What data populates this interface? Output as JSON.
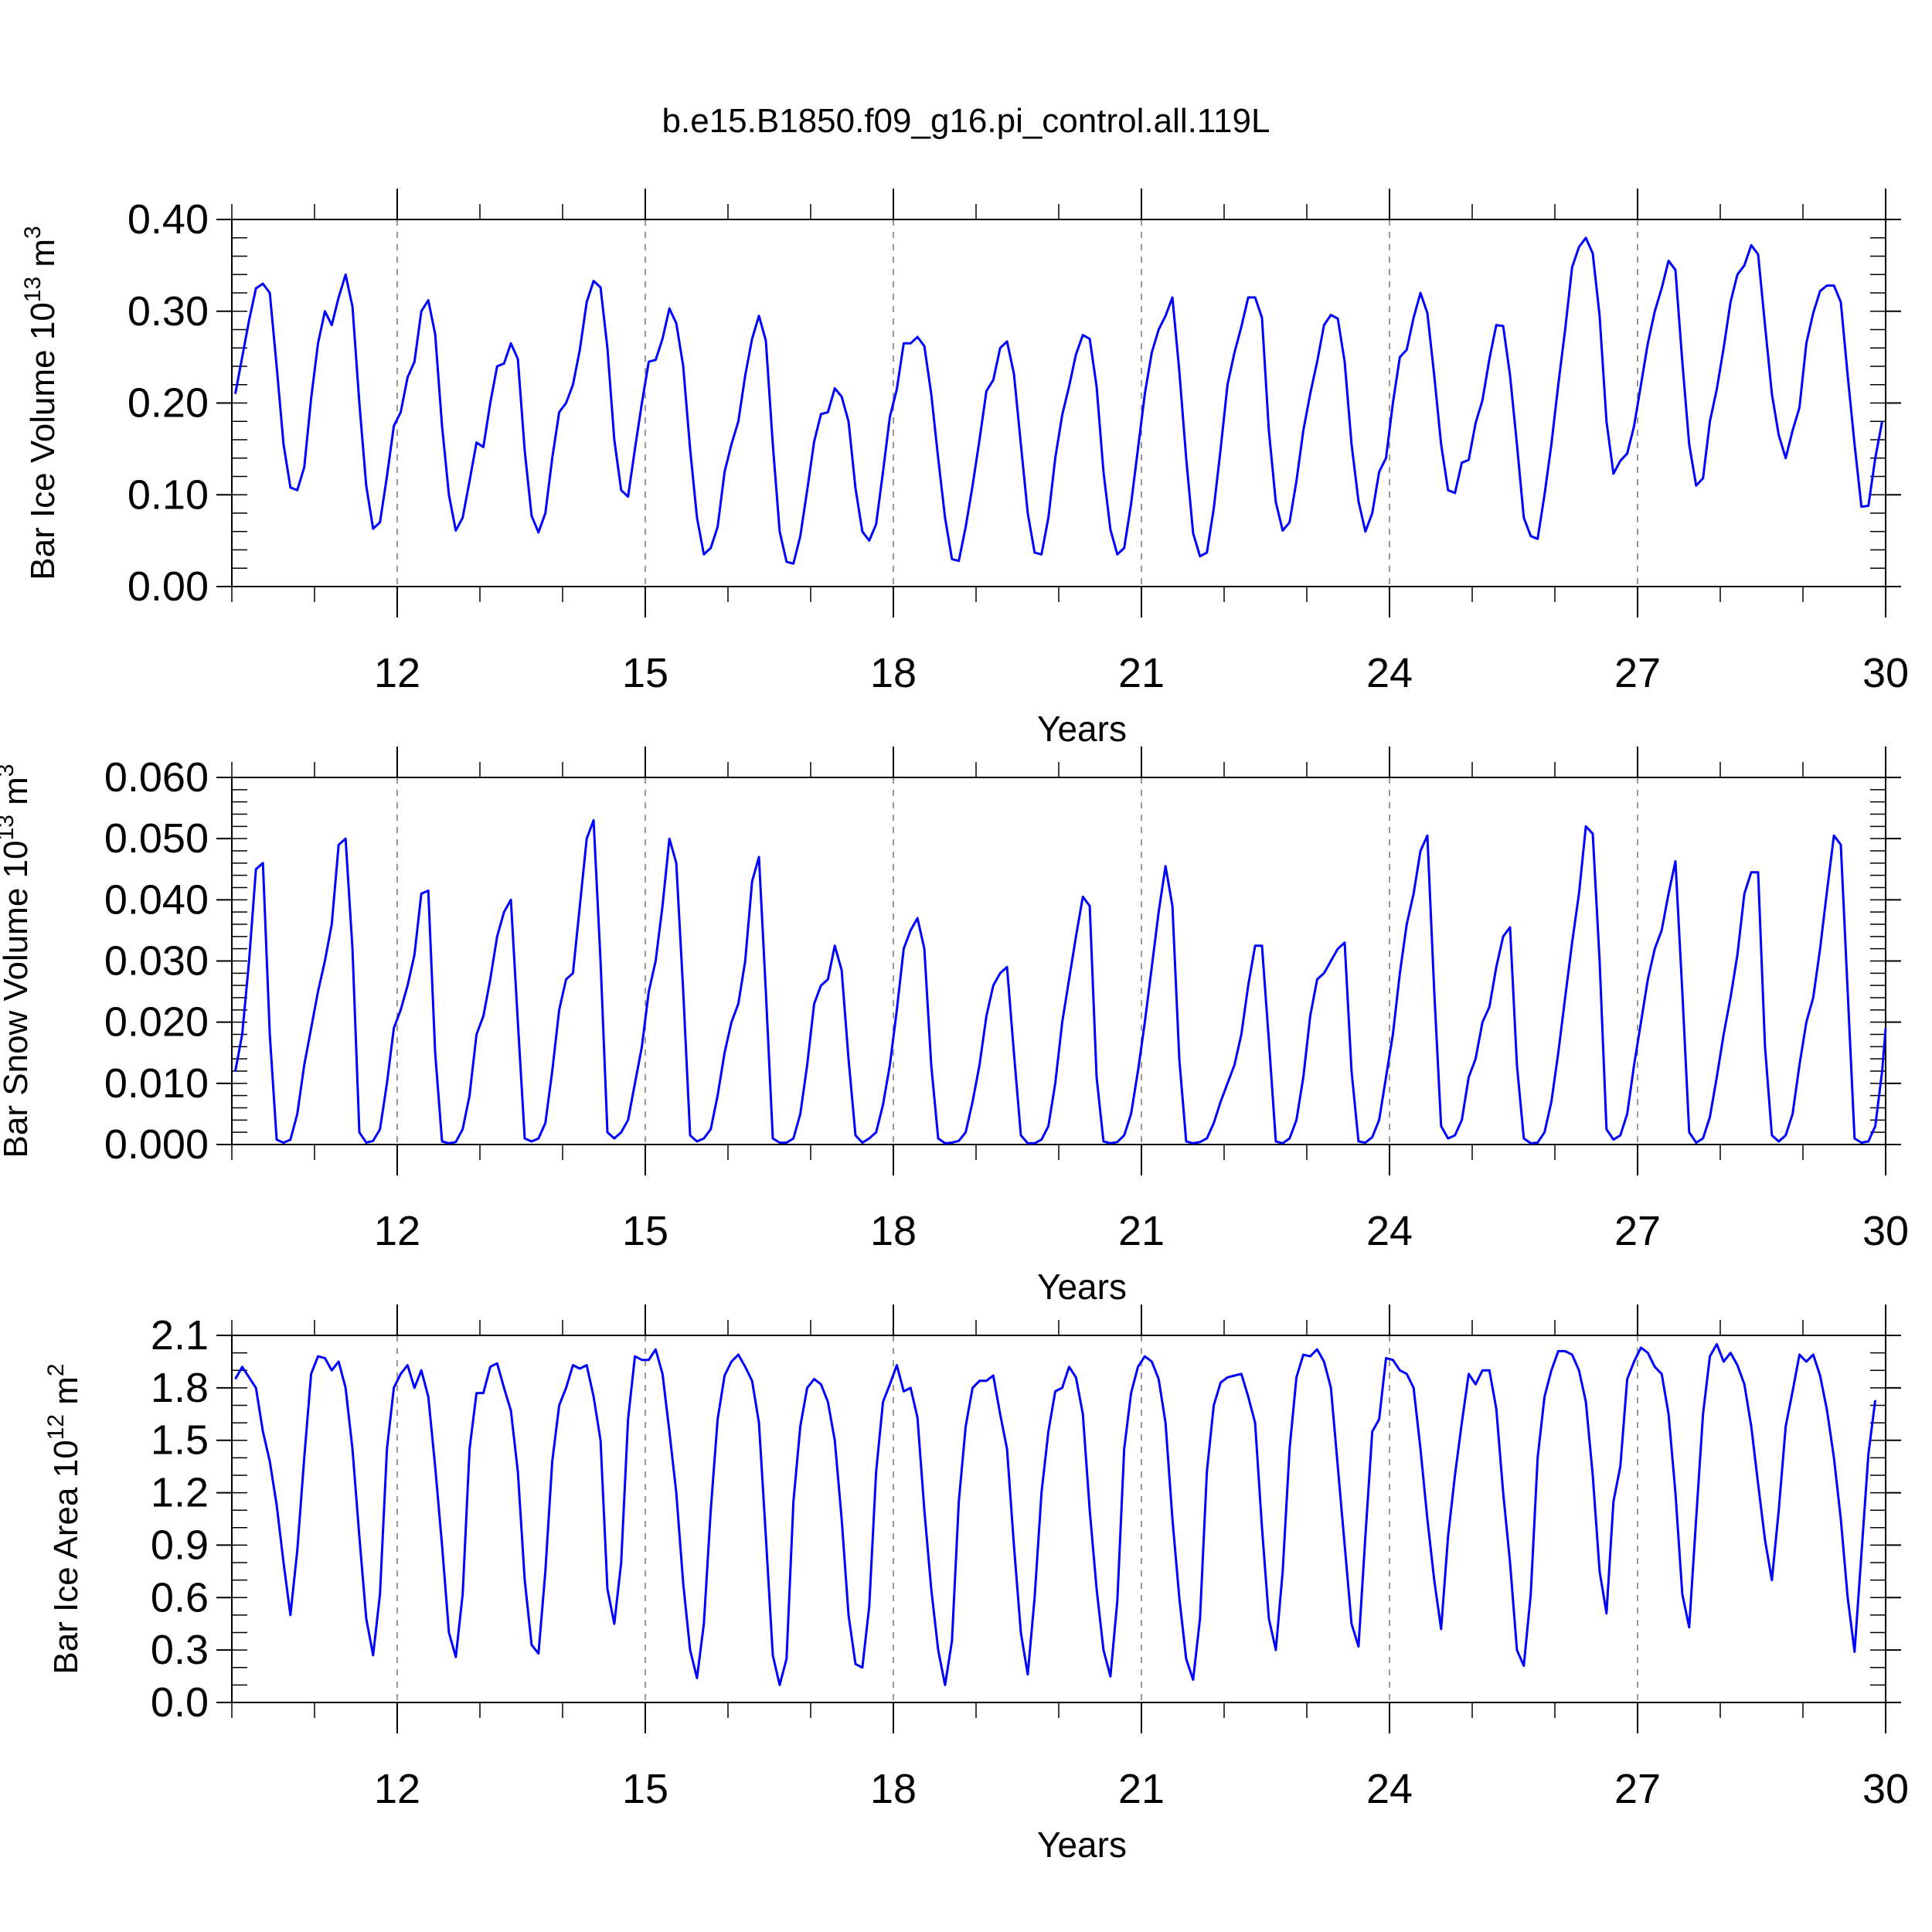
{
  "figure_title": "b.e15.B1850.f09_g16.pi_control.all.119L",
  "line_color": "#0000ff",
  "chart_data": [
    {
      "type": "line",
      "xlabel": "Years",
      "ylabel_main": "Bar Ice Volume 10",
      "ylabel_exp": "13",
      "ylabel_unit": " m",
      "ylabel_unit_exp": "3",
      "xlim": [
        10,
        30
      ],
      "ylim": [
        0,
        0.4
      ],
      "xticks": [
        12,
        15,
        18,
        21,
        24,
        27,
        30
      ],
      "xtick_labels": [
        "12",
        "15",
        "18",
        "21",
        "24",
        "27",
        "30"
      ],
      "yticks": [
        0,
        0.1,
        0.2,
        0.3,
        0.4
      ],
      "ytick_labels": [
        "0.00",
        "0.10",
        "0.20",
        "0.30",
        "0.40"
      ],
      "yminor_step": 0.02,
      "vertical_grid": "dashed",
      "series": [
        {
          "x_start": 10.042,
          "x_step": 0.08333,
          "values": [
            0.21,
            0.25,
            0.29,
            0.325,
            0.33,
            0.32,
            0.24,
            0.155,
            0.108,
            0.105,
            0.13,
            0.205,
            0.265,
            0.3,
            0.285,
            0.315,
            0.34,
            0.305,
            0.2,
            0.11,
            0.063,
            0.07,
            0.12,
            0.175,
            0.19,
            0.228,
            0.245,
            0.3,
            0.312,
            0.275,
            0.175,
            0.1,
            0.061,
            0.075,
            0.115,
            0.157,
            0.152,
            0.2,
            0.24,
            0.243,
            0.265,
            0.248,
            0.148,
            0.077,
            0.059,
            0.08,
            0.14,
            0.19,
            0.2,
            0.22,
            0.258,
            0.31,
            0.333,
            0.326,
            0.26,
            0.16,
            0.105,
            0.098,
            0.15,
            0.2,
            0.245,
            0.247,
            0.27,
            0.303,
            0.287,
            0.24,
            0.15,
            0.075,
            0.035,
            0.042,
            0.065,
            0.125,
            0.155,
            0.18,
            0.23,
            0.27,
            0.295,
            0.268,
            0.155,
            0.06,
            0.027,
            0.025,
            0.055,
            0.105,
            0.158,
            0.188,
            0.19,
            0.216,
            0.207,
            0.18,
            0.107,
            0.06,
            0.05,
            0.068,
            0.125,
            0.185,
            0.215,
            0.265,
            0.265,
            0.272,
            0.262,
            0.21,
            0.14,
            0.075,
            0.03,
            0.028,
            0.065,
            0.11,
            0.16,
            0.213,
            0.225,
            0.26,
            0.267,
            0.232,
            0.155,
            0.08,
            0.037,
            0.035,
            0.075,
            0.14,
            0.187,
            0.218,
            0.253,
            0.274,
            0.27,
            0.218,
            0.125,
            0.062,
            0.035,
            0.042,
            0.09,
            0.15,
            0.21,
            0.255,
            0.28,
            0.295,
            0.315,
            0.235,
            0.14,
            0.058,
            0.033,
            0.037,
            0.085,
            0.15,
            0.22,
            0.255,
            0.283,
            0.315,
            0.315,
            0.293,
            0.17,
            0.092,
            0.061,
            0.07,
            0.115,
            0.17,
            0.21,
            0.245,
            0.285,
            0.296,
            0.292,
            0.245,
            0.155,
            0.093,
            0.06,
            0.08,
            0.125,
            0.14,
            0.2,
            0.25,
            0.258,
            0.293,
            0.32,
            0.298,
            0.23,
            0.155,
            0.105,
            0.102,
            0.135,
            0.138,
            0.178,
            0.203,
            0.248,
            0.285,
            0.284,
            0.23,
            0.155,
            0.075,
            0.055,
            0.052,
            0.1,
            0.155,
            0.22,
            0.28,
            0.348,
            0.37,
            0.38,
            0.363,
            0.295,
            0.18,
            0.123,
            0.137,
            0.145,
            0.175,
            0.22,
            0.265,
            0.3,
            0.325,
            0.355,
            0.345,
            0.245,
            0.155,
            0.11,
            0.118,
            0.18,
            0.215,
            0.26,
            0.31,
            0.34,
            0.35,
            0.372,
            0.362,
            0.285,
            0.21,
            0.165,
            0.14,
            0.17,
            0.195,
            0.265,
            0.298,
            0.322,
            0.328,
            0.328,
            0.31,
            0.23,
            0.155,
            0.087,
            0.088,
            0.14,
            0.18
          ]
        }
      ]
    },
    {
      "type": "line",
      "xlabel": "Years",
      "ylabel_main": "Bar Snow Volume 10",
      "ylabel_exp": "13",
      "ylabel_unit": " m",
      "ylabel_unit_exp": "3",
      "xlim": [
        10,
        30
      ],
      "ylim": [
        0,
        0.06
      ],
      "xticks": [
        12,
        15,
        18,
        21,
        24,
        27,
        30
      ],
      "xtick_labels": [
        "12",
        "15",
        "18",
        "21",
        "24",
        "27",
        "30"
      ],
      "yticks": [
        0,
        0.01,
        0.02,
        0.03,
        0.04,
        0.05,
        0.06
      ],
      "ytick_labels": [
        "0.000",
        "0.010",
        "0.020",
        "0.030",
        "0.040",
        "0.050",
        "0.060"
      ],
      "yminor_step": 0.002,
      "vertical_grid": "dashed",
      "series": [
        {
          "x_start": 10.042,
          "x_step": 0.08333,
          "values": [
            0.012,
            0.018,
            0.03,
            0.045,
            0.046,
            0.018,
            0.0008,
            0.0003,
            0.0008,
            0.005,
            0.013,
            0.019,
            0.025,
            0.03,
            0.036,
            0.049,
            0.05,
            0.032,
            0.002,
            0.0003,
            0.0006,
            0.0025,
            0.01,
            0.019,
            0.022,
            0.026,
            0.031,
            0.041,
            0.0415,
            0.015,
            0.0005,
            0.0002,
            0.0004,
            0.0025,
            0.008,
            0.018,
            0.021,
            0.027,
            0.034,
            0.038,
            0.04,
            0.02,
            0.001,
            0.0005,
            0.001,
            0.0035,
            0.012,
            0.022,
            0.027,
            0.028,
            0.039,
            0.05,
            0.053,
            0.03,
            0.002,
            0.001,
            0.002,
            0.004,
            0.01,
            0.016,
            0.025,
            0.03,
            0.039,
            0.05,
            0.046,
            0.025,
            0.0015,
            0.0005,
            0.001,
            0.0025,
            0.008,
            0.015,
            0.02,
            0.023,
            0.03,
            0.043,
            0.047,
            0.025,
            0.001,
            0.0003,
            0.0003,
            0.001,
            0.005,
            0.013,
            0.023,
            0.026,
            0.027,
            0.0325,
            0.0285,
            0.014,
            0.0015,
            0.0003,
            0.001,
            0.002,
            0.0065,
            0.013,
            0.022,
            0.032,
            0.035,
            0.037,
            0.032,
            0.013,
            0.001,
            0.0002,
            0.0003,
            0.0006,
            0.002,
            0.007,
            0.013,
            0.021,
            0.026,
            0.028,
            0.029,
            0.015,
            0.0015,
            0.0002,
            0.0002,
            0.0008,
            0.003,
            0.01,
            0.02,
            0.027,
            0.034,
            0.0405,
            0.039,
            0.011,
            0.0005,
            0.0002,
            0.0004,
            0.0015,
            0.005,
            0.012,
            0.02,
            0.029,
            0.038,
            0.0455,
            0.039,
            0.014,
            0.0005,
            0.0002,
            0.0004,
            0.001,
            0.0035,
            0.007,
            0.01,
            0.013,
            0.018,
            0.026,
            0.0325,
            0.0325,
            0.017,
            0.0005,
            0.0002,
            0.001,
            0.004,
            0.011,
            0.021,
            0.027,
            0.028,
            0.03,
            0.032,
            0.033,
            0.012,
            0.0005,
            0.0003,
            0.0012,
            0.004,
            0.011,
            0.018,
            0.028,
            0.036,
            0.041,
            0.048,
            0.0505,
            0.025,
            0.003,
            0.001,
            0.0015,
            0.004,
            0.011,
            0.014,
            0.02,
            0.0225,
            0.029,
            0.034,
            0.0355,
            0.013,
            0.001,
            0.0002,
            0.0003,
            0.002,
            0.007,
            0.015,
            0.024,
            0.033,
            0.041,
            0.052,
            0.0508,
            0.03,
            0.0025,
            0.0008,
            0.0015,
            0.005,
            0.013,
            0.02,
            0.027,
            0.032,
            0.035,
            0.041,
            0.0463,
            0.025,
            0.002,
            0.0003,
            0.001,
            0.0045,
            0.011,
            0.018,
            0.024,
            0.031,
            0.041,
            0.0445,
            0.0445,
            0.016,
            0.0015,
            0.0005,
            0.0015,
            0.005,
            0.013,
            0.02,
            0.024,
            0.032,
            0.0415,
            0.0505,
            0.049,
            0.025,
            0.001,
            0.0003,
            0.0005,
            0.003,
            0.012,
            0.019
          ]
        }
      ]
    },
    {
      "type": "line",
      "xlabel": "Years",
      "ylabel_main": "Bar Ice Area 10",
      "ylabel_exp": "12",
      "ylabel_unit": " m",
      "ylabel_unit_exp": "2",
      "xlim": [
        10,
        30
      ],
      "ylim": [
        0,
        2.1
      ],
      "xticks": [
        12,
        15,
        18,
        21,
        24,
        27,
        30
      ],
      "xtick_labels": [
        "12",
        "15",
        "18",
        "21",
        "24",
        "27",
        "30"
      ],
      "yticks": [
        0,
        0.3,
        0.6,
        0.9,
        1.2,
        1.5,
        1.8,
        2.1
      ],
      "ytick_labels": [
        "0.0",
        "0.3",
        "0.6",
        "0.9",
        "1.2",
        "1.5",
        "1.8",
        "2.1"
      ],
      "yminor_step": 0.1,
      "vertical_grid": "dashed",
      "series": [
        {
          "x_start": 10.042,
          "x_step": 0.08333,
          "values": [
            1.85,
            1.92,
            1.86,
            1.8,
            1.55,
            1.38,
            1.13,
            0.8,
            0.5,
            0.87,
            1.4,
            1.88,
            1.98,
            1.97,
            1.9,
            1.95,
            1.8,
            1.45,
            0.95,
            0.48,
            0.27,
            0.62,
            1.45,
            1.8,
            1.88,
            1.93,
            1.8,
            1.9,
            1.75,
            1.35,
            0.9,
            0.4,
            0.26,
            0.62,
            1.45,
            1.77,
            1.77,
            1.92,
            1.94,
            1.8,
            1.67,
            1.32,
            0.7,
            0.33,
            0.28,
            0.75,
            1.38,
            1.7,
            1.8,
            1.93,
            1.91,
            1.93,
            1.75,
            1.5,
            0.65,
            0.45,
            0.8,
            1.62,
            1.98,
            1.96,
            1.96,
            2.02,
            1.88,
            1.55,
            1.2,
            0.68,
            0.3,
            0.14,
            0.45,
            1.1,
            1.62,
            1.87,
            1.95,
            1.99,
            1.92,
            1.84,
            1.6,
            0.95,
            0.27,
            0.1,
            0.25,
            1.15,
            1.58,
            1.8,
            1.85,
            1.82,
            1.72,
            1.5,
            1.05,
            0.5,
            0.22,
            0.2,
            0.55,
            1.32,
            1.72,
            1.82,
            1.93,
            1.78,
            1.8,
            1.63,
            1.1,
            0.65,
            0.3,
            0.1,
            0.35,
            1.15,
            1.58,
            1.8,
            1.84,
            1.84,
            1.87,
            1.65,
            1.45,
            0.9,
            0.4,
            0.16,
            0.6,
            1.2,
            1.55,
            1.78,
            1.8,
            1.92,
            1.86,
            1.65,
            1.1,
            0.65,
            0.3,
            0.15,
            0.58,
            1.45,
            1.77,
            1.92,
            1.98,
            1.95,
            1.85,
            1.6,
            1.05,
            0.6,
            0.25,
            0.13,
            0.48,
            1.32,
            1.7,
            1.83,
            1.86,
            1.87,
            1.88,
            1.75,
            1.6,
            1.0,
            0.48,
            0.3,
            0.75,
            1.45,
            1.86,
            1.99,
            1.98,
            2.02,
            1.95,
            1.8,
            1.35,
            0.9,
            0.45,
            0.32,
            0.95,
            1.55,
            1.62,
            1.97,
            1.96,
            1.9,
            1.88,
            1.8,
            1.45,
            1.05,
            0.7,
            0.42,
            0.95,
            1.3,
            1.6,
            1.88,
            1.82,
            1.9,
            1.9,
            1.68,
            1.2,
            0.8,
            0.3,
            0.21,
            0.62,
            1.4,
            1.75,
            1.9,
            2.01,
            2.01,
            1.99,
            1.9,
            1.72,
            1.3,
            0.75,
            0.51,
            1.15,
            1.35,
            1.85,
            1.95,
            2.03,
            2.0,
            1.92,
            1.88,
            1.65,
            1.2,
            0.62,
            0.43,
            1.05,
            1.65,
            1.98,
            2.05,
            1.95,
            2.0,
            1.93,
            1.82,
            1.58,
            1.25,
            0.93,
            0.7,
            1.1,
            1.58,
            1.78,
            1.99,
            1.95,
            1.99,
            1.87,
            1.67,
            1.4,
            1.05,
            0.6,
            0.29,
            0.85,
            1.42,
            1.73
          ]
        }
      ]
    }
  ]
}
